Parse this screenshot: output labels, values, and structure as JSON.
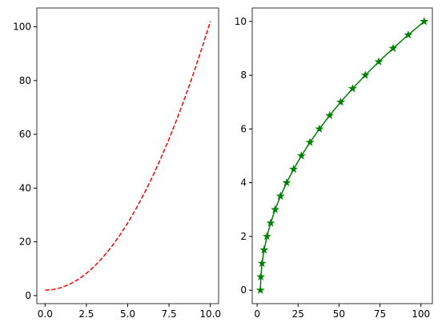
{
  "chart_data": [
    {
      "type": "line",
      "x": [
        0,
        0.5,
        1,
        1.5,
        2,
        2.5,
        3,
        3.5,
        4,
        4.5,
        5,
        5.5,
        6,
        6.5,
        7,
        7.5,
        8,
        8.5,
        9,
        9.5,
        10
      ],
      "series": [
        {
          "color": "#ff0000",
          "line_style": "dashed",
          "values": [
            2,
            2.25,
            3,
            4.25,
            6,
            8.25,
            11,
            14.25,
            18,
            22.25,
            27,
            32.25,
            38,
            44.25,
            51,
            58.25,
            66,
            74.25,
            83,
            92.25,
            102
          ]
        }
      ],
      "xlim": [
        -0.5,
        10.5
      ],
      "ylim": [
        -3,
        107
      ],
      "xticks": [
        {
          "value": 0,
          "label": "0.0"
        },
        {
          "value": 2.5,
          "label": "2.5"
        },
        {
          "value": 5,
          "label": "5.0"
        },
        {
          "value": 7.5,
          "label": "7.5"
        },
        {
          "value": 10,
          "label": "10.0"
        }
      ],
      "yticks": [
        0,
        20,
        40,
        60,
        80,
        100
      ]
    },
    {
      "type": "line",
      "x": [
        2,
        2.25,
        3,
        4.25,
        6,
        8.25,
        11,
        14.25,
        18,
        22.25,
        27,
        32.25,
        38,
        44.25,
        51,
        58.25,
        66,
        74.25,
        83,
        92.25,
        102
      ],
      "series": [
        {
          "color": "#008000",
          "line_style": "solid",
          "marker": "star",
          "values": [
            0,
            0.5,
            1,
            1.5,
            2,
            2.5,
            3,
            3.5,
            4,
            4.5,
            5,
            5.5,
            6,
            6.5,
            7,
            7.5,
            8,
            8.5,
            9,
            9.5,
            10
          ]
        }
      ],
      "xlim": [
        -3,
        107
      ],
      "ylim": [
        -0.5,
        10.5
      ],
      "xticks": [
        0,
        25,
        50,
        75,
        100
      ],
      "yticks": [
        0,
        2,
        4,
        6,
        8,
        10
      ]
    }
  ]
}
